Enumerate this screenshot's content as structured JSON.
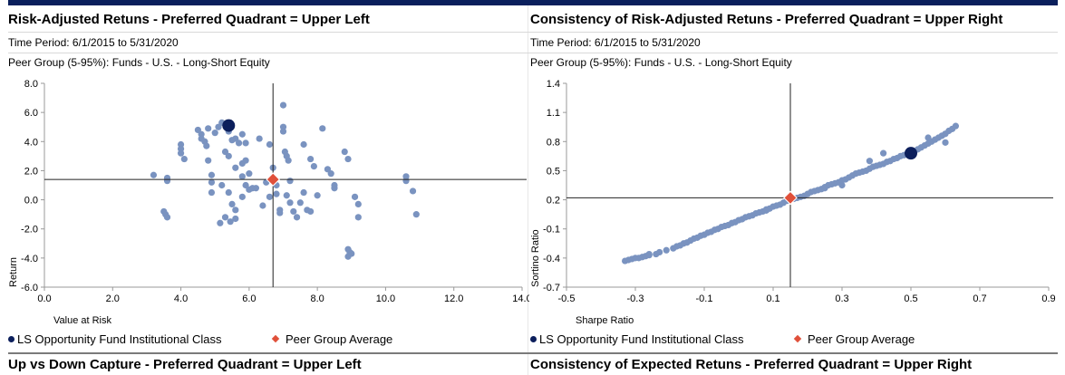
{
  "colors": {
    "fund": "#0c1f5c",
    "peer_points": "#7a93c0",
    "peer_average": "#e0503a",
    "header_bar": "#0a1f5c"
  },
  "panels": [
    {
      "title": "Risk-Adjusted Retuns - Preferred Quadrant = Upper Left",
      "time_period": "Time Period: 6/1/2015 to 5/31/2020",
      "peer_group": "Peer Group (5-95%): Funds - U.S. - Long-Short Equity",
      "legend_fund": "LS Opportunity Fund Institutional Class",
      "legend_peer": "Peer Group Average",
      "bottom_title": "Up vs Down Capture - Preferred Quadrant = Upper Left"
    },
    {
      "title": "Consistency of Risk-Adjusted Retuns - Preferred Quadrant = Upper Right",
      "time_period": "Time Period: 6/1/2015 to 5/31/2020",
      "peer_group": "Peer Group (5-95%): Funds - U.S. - Long-Short Equity",
      "legend_fund": "LS Opportunity Fund Institutional Class",
      "legend_peer": "Peer Group Average",
      "bottom_title": "Consistency of Expected Retuns - Preferred Quadrant = Upper Right"
    }
  ],
  "chart_data": [
    {
      "type": "scatter",
      "title": "Risk-Adjusted Retuns - Preferred Quadrant = Upper Left",
      "xlabel": "Value at Risk",
      "ylabel": "Return",
      "xlim": [
        0,
        14
      ],
      "ylim": [
        -6,
        8
      ],
      "xticks": [
        0,
        2,
        4,
        6,
        8,
        10,
        12,
        14
      ],
      "xtick_labels": [
        "0.0",
        "2.0",
        "4.0",
        "6.0",
        "8.0",
        "10.0",
        "12.0",
        "14.0"
      ],
      "yticks": [
        -6,
        -4,
        -2,
        0,
        2,
        4,
        6,
        8
      ],
      "ytick_labels": [
        "-6.0",
        "-4.0",
        "-2.0",
        "0.0",
        "2.0",
        "4.0",
        "6.0",
        "8.0"
      ],
      "fund": {
        "name": "LS Opportunity Fund Institutional Class",
        "x": 5.4,
        "y": 5.1
      },
      "peer_average": {
        "name": "Peer Group Average",
        "x": 6.7,
        "y": 1.4
      },
      "peers": [
        [
          3.2,
          1.7
        ],
        [
          3.6,
          1.3
        ],
        [
          3.6,
          1.5
        ],
        [
          3.5,
          -0.8
        ],
        [
          3.55,
          -1.0
        ],
        [
          3.6,
          -1.2
        ],
        [
          4.0,
          3.8
        ],
        [
          4.0,
          3.5
        ],
        [
          4.0,
          3.2
        ],
        [
          4.1,
          2.8
        ],
        [
          4.5,
          4.8
        ],
        [
          4.6,
          4.5
        ],
        [
          4.6,
          4.2
        ],
        [
          4.7,
          4.0
        ],
        [
          4.8,
          4.9
        ],
        [
          4.75,
          3.7
        ],
        [
          4.8,
          2.7
        ],
        [
          4.9,
          1.7
        ],
        [
          4.9,
          1.2
        ],
        [
          4.9,
          0.5
        ],
        [
          5.1,
          5.0
        ],
        [
          5.0,
          4.6
        ],
        [
          5.2,
          5.3
        ],
        [
          5.3,
          3.3
        ],
        [
          5.4,
          4.7
        ],
        [
          5.5,
          4.1
        ],
        [
          5.6,
          4.2
        ],
        [
          5.7,
          3.9
        ],
        [
          5.8,
          4.5
        ],
        [
          5.9,
          3.9
        ],
        [
          5.8,
          2.5
        ],
        [
          5.9,
          2.7
        ],
        [
          5.2,
          1.0
        ],
        [
          5.4,
          0.5
        ],
        [
          5.5,
          -0.3
        ],
        [
          5.6,
          -0.7
        ],
        [
          5.8,
          0.2
        ],
        [
          5.9,
          1.0
        ],
        [
          6.0,
          1.8
        ],
        [
          6.1,
          0.8
        ],
        [
          5.4,
          3.0
        ],
        [
          5.6,
          2.2
        ],
        [
          5.8,
          1.6
        ],
        [
          6.0,
          0.7
        ],
        [
          5.3,
          -1.2
        ],
        [
          5.45,
          -1.5
        ],
        [
          5.6,
          -1.3
        ],
        [
          5.15,
          -1.6
        ],
        [
          6.3,
          4.2
        ],
        [
          6.2,
          0.8
        ],
        [
          6.4,
          -0.4
        ],
        [
          6.5,
          1.2
        ],
        [
          6.6,
          0.2
        ],
        [
          6.6,
          3.8
        ],
        [
          6.7,
          2.2
        ],
        [
          6.8,
          1.0
        ],
        [
          6.8,
          0.4
        ],
        [
          6.9,
          -0.7
        ],
        [
          6.9,
          -0.9
        ],
        [
          7.0,
          6.5
        ],
        [
          7.0,
          5.0
        ],
        [
          7.0,
          4.7
        ],
        [
          7.05,
          3.3
        ],
        [
          7.1,
          3.0
        ],
        [
          7.15,
          2.7
        ],
        [
          7.2,
          1.3
        ],
        [
          7.1,
          0.3
        ],
        [
          7.2,
          -0.2
        ],
        [
          7.3,
          -0.8
        ],
        [
          7.4,
          -1.2
        ],
        [
          7.6,
          3.8
        ],
        [
          7.8,
          2.8
        ],
        [
          7.9,
          2.3
        ],
        [
          8.0,
          0.3
        ],
        [
          7.6,
          0.5
        ],
        [
          7.7,
          -0.7
        ],
        [
          7.8,
          -0.8
        ],
        [
          7.5,
          -0.2
        ],
        [
          8.15,
          4.9
        ],
        [
          8.4,
          1.8
        ],
        [
          8.3,
          2.1
        ],
        [
          8.5,
          1.0
        ],
        [
          8.5,
          0.8
        ],
        [
          8.8,
          3.3
        ],
        [
          8.9,
          2.8
        ],
        [
          8.9,
          -3.4
        ],
        [
          8.95,
          -3.6
        ],
        [
          8.9,
          -3.9
        ],
        [
          9.0,
          -3.7
        ],
        [
          9.1,
          0.2
        ],
        [
          9.2,
          -0.3
        ],
        [
          9.2,
          -1.2
        ],
        [
          10.6,
          1.6
        ],
        [
          10.6,
          1.3
        ],
        [
          10.8,
          0.6
        ],
        [
          10.9,
          -1.0
        ]
      ]
    },
    {
      "type": "scatter",
      "title": "Consistency of Risk-Adjusted Retuns - Preferred Quadrant = Upper Right",
      "xlabel": "Sharpe Ratio",
      "ylabel": "Sortino Ratio",
      "xlim": [
        -0.5,
        0.9
      ],
      "ylim": [
        -0.7,
        1.4
      ],
      "xticks": [
        -0.5,
        -0.3,
        -0.1,
        0.1,
        0.3,
        0.5,
        0.7,
        0.9
      ],
      "xtick_labels": [
        "-0.5",
        "-0.3",
        "-0.1",
        "0.1",
        "0.3",
        "0.5",
        "0.7",
        "0.9"
      ],
      "yticks": [
        -0.7,
        -0.4,
        -0.1,
        0.2,
        0.5,
        0.8,
        1.1,
        1.4
      ],
      "ytick_labels": [
        "-0.7",
        "-0.4",
        "-0.1",
        "0.2",
        "0.5",
        "0.8",
        "1.1",
        "1.4"
      ],
      "fund": {
        "name": "LS Opportunity Fund Institutional Class",
        "x": 0.5,
        "y": 0.68
      },
      "peer_average": {
        "name": "Peer Group Average",
        "x": 0.15,
        "y": 0.22
      },
      "peers": [
        [
          -0.33,
          -0.43
        ],
        [
          -0.32,
          -0.42
        ],
        [
          -0.31,
          -0.41
        ],
        [
          -0.3,
          -0.4
        ],
        [
          -0.29,
          -0.4
        ],
        [
          -0.28,
          -0.39
        ],
        [
          -0.27,
          -0.38
        ],
        [
          -0.26,
          -0.37
        ],
        [
          -0.24,
          -0.36
        ],
        [
          -0.23,
          -0.34
        ],
        [
          -0.21,
          -0.32
        ],
        [
          -0.19,
          -0.3
        ],
        [
          -0.17,
          -0.27
        ],
        [
          -0.16,
          -0.25
        ],
        [
          -0.15,
          -0.24
        ],
        [
          -0.14,
          -0.22
        ],
        [
          -0.13,
          -0.2
        ],
        [
          -0.12,
          -0.19
        ],
        [
          -0.11,
          -0.17
        ],
        [
          -0.1,
          -0.16
        ],
        [
          -0.09,
          -0.14
        ],
        [
          -0.08,
          -0.13
        ],
        [
          -0.07,
          -0.11
        ],
        [
          -0.06,
          -0.1
        ],
        [
          -0.05,
          -0.08
        ],
        [
          -0.04,
          -0.07
        ],
        [
          -0.03,
          -0.06
        ],
        [
          -0.02,
          -0.04
        ],
        [
          -0.01,
          -0.03
        ],
        [
          0.0,
          -0.01
        ],
        [
          0.01,
          0.0
        ],
        [
          0.02,
          0.02
        ],
        [
          0.03,
          0.03
        ],
        [
          0.04,
          0.04
        ],
        [
          0.05,
          0.06
        ],
        [
          0.06,
          0.07
        ],
        [
          0.07,
          0.08
        ],
        [
          0.08,
          0.1
        ],
        [
          0.09,
          0.11
        ],
        [
          0.1,
          0.13
        ],
        [
          0.11,
          0.14
        ],
        [
          0.12,
          0.15
        ],
        [
          0.13,
          0.17
        ],
        [
          0.14,
          0.19
        ],
        [
          0.16,
          0.21
        ],
        [
          0.17,
          0.22
        ],
        [
          0.18,
          0.23
        ],
        [
          0.19,
          0.24
        ],
        [
          0.2,
          0.26
        ],
        [
          0.21,
          0.28
        ],
        [
          0.22,
          0.29
        ],
        [
          0.23,
          0.3
        ],
        [
          0.24,
          0.31
        ],
        [
          0.25,
          0.33
        ],
        [
          0.26,
          0.35
        ],
        [
          0.27,
          0.36
        ],
        [
          0.28,
          0.37
        ],
        [
          0.29,
          0.38
        ],
        [
          0.3,
          0.4
        ],
        [
          0.31,
          0.41
        ],
        [
          0.32,
          0.43
        ],
        [
          0.33,
          0.45
        ],
        [
          0.34,
          0.47
        ],
        [
          0.35,
          0.48
        ],
        [
          0.36,
          0.49
        ],
        [
          0.37,
          0.5
        ],
        [
          0.38,
          0.52
        ],
        [
          0.39,
          0.54
        ],
        [
          0.4,
          0.55
        ],
        [
          0.41,
          0.56
        ],
        [
          0.42,
          0.57
        ],
        [
          0.43,
          0.59
        ],
        [
          0.44,
          0.6
        ],
        [
          0.45,
          0.62
        ],
        [
          0.46,
          0.63
        ],
        [
          0.47,
          0.65
        ],
        [
          0.48,
          0.66
        ],
        [
          0.49,
          0.67
        ],
        [
          0.51,
          0.7
        ],
        [
          0.52,
          0.72
        ],
        [
          0.53,
          0.74
        ],
        [
          0.54,
          0.76
        ],
        [
          0.55,
          0.78
        ],
        [
          0.56,
          0.8
        ],
        [
          0.57,
          0.82
        ],
        [
          0.58,
          0.84
        ],
        [
          0.59,
          0.86
        ],
        [
          0.6,
          0.88
        ],
        [
          0.61,
          0.91
        ],
        [
          0.62,
          0.93
        ],
        [
          0.63,
          0.96
        ],
        [
          0.42,
          0.68
        ],
        [
          0.38,
          0.6
        ],
        [
          0.3,
          0.35
        ],
        [
          0.25,
          0.32
        ],
        [
          -0.18,
          -0.28
        ],
        [
          -0.26,
          -0.36
        ],
        [
          0.08,
          0.09
        ],
        [
          0.55,
          0.84
        ],
        [
          0.6,
          0.79
        ]
      ]
    }
  ]
}
